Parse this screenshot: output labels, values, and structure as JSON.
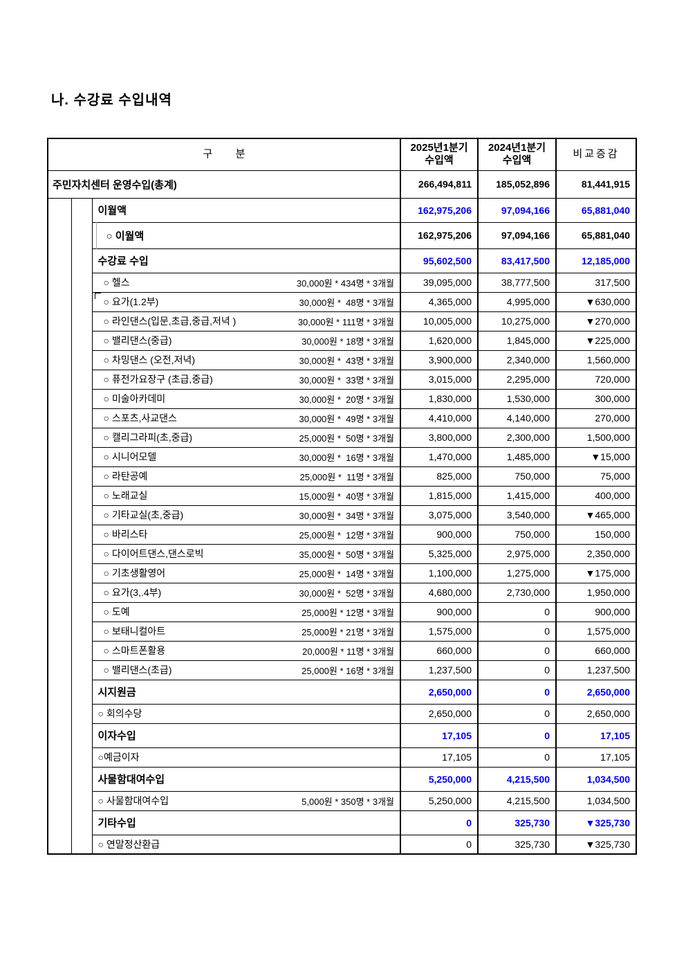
{
  "page": {
    "title": "나. 수강료 수입내역"
  },
  "table": {
    "header": {
      "col_label": "구        분",
      "col_2025_line1": "2025년1분기",
      "col_2025_line2": "수입액",
      "col_2024_line1": "2024년1분기",
      "col_2024_line2": "수입액",
      "col_diff": "비교증감"
    },
    "rows": [
      {
        "kind": "total",
        "label": "주민자치센터 운영수입(총계)",
        "calc": "",
        "v2025": "266,494,811",
        "v2024": "185,052,896",
        "diff": "81,441,915"
      },
      {
        "kind": "section",
        "label": "이월액",
        "calc": "",
        "v2025": "162,975,206",
        "v2024": "97,094,166",
        "diff": "65,881,040"
      },
      {
        "kind": "carry",
        "label": "○ 이월액",
        "calc": "",
        "v2025": "162,975,206",
        "v2024": "97,094,166",
        "diff": "65,881,040"
      },
      {
        "kind": "section",
        "label": "수강료 수입",
        "calc": "",
        "v2025": "95,602,500",
        "v2024": "83,417,500",
        "diff": "12,185,000"
      },
      {
        "kind": "course",
        "label": "○ 헬스",
        "calc": "30,000원 * 434명 * 3개월",
        "v2025": "39,095,000",
        "v2024": "38,777,500",
        "diff": "317,500"
      },
      {
        "kind": "course",
        "label": "○ 요가(1.2부)",
        "calc": "30,000원 *  48명 * 3개월",
        "v2025": "4,365,000",
        "v2024": "4,995,000",
        "diff": "▼630,000"
      },
      {
        "kind": "course",
        "label": "○ 라인댄스(입문,초급,중급,저녁 )",
        "calc": "30,000원 * 111명 * 3개월",
        "v2025": "10,005,000",
        "v2024": "10,275,000",
        "diff": "▼270,000"
      },
      {
        "kind": "course",
        "label": "○ 밸리댄스(중급)",
        "calc": "30,000원 * 18명 * 3개월",
        "v2025": "1,620,000",
        "v2024": "1,845,000",
        "diff": "▼225,000"
      },
      {
        "kind": "course",
        "label": "○ 차밍댄스 (오전,저녁)",
        "calc": "30,000원 *  43명 * 3개월",
        "v2025": "3,900,000",
        "v2024": "2,340,000",
        "diff": "1,560,000"
      },
      {
        "kind": "course",
        "label": "○ 퓨전가요장구 (초급,중급)",
        "calc": "30,000원 *  33명 * 3개월",
        "v2025": "3,015,000",
        "v2024": "2,295,000",
        "diff": "720,000"
      },
      {
        "kind": "course",
        "label": "○ 미술아카데미",
        "calc": "30,000원 *  20명 * 3개월",
        "v2025": "1,830,000",
        "v2024": "1,530,000",
        "diff": "300,000"
      },
      {
        "kind": "course",
        "label": "○ 스포츠,사교댄스",
        "calc": "30,000원 *  49명 * 3개월",
        "v2025": "4,410,000",
        "v2024": "4,140,000",
        "diff": "270,000"
      },
      {
        "kind": "course",
        "label": "○ 캘리그라피(초,중급)",
        "calc": "25,000원 *  50명 * 3개월",
        "v2025": "3,800,000",
        "v2024": "2,300,000",
        "diff": "1,500,000"
      },
      {
        "kind": "course",
        "label": "○ 시니어모델",
        "calc": "30,000원 *  16명 * 3개월",
        "v2025": "1,470,000",
        "v2024": "1,485,000",
        "diff": "▼15,000"
      },
      {
        "kind": "course",
        "label": "○ 라탄공예",
        "calc": "25,000원 *  11명 * 3개월",
        "v2025": "825,000",
        "v2024": "750,000",
        "diff": "75,000"
      },
      {
        "kind": "course",
        "label": "○ 노래교실",
        "calc": "15,000원 *  40명 * 3개월",
        "v2025": "1,815,000",
        "v2024": "1,415,000",
        "diff": "400,000"
      },
      {
        "kind": "course",
        "label": "○ 기타교실(초,중급)",
        "calc": "30,000원 *  34명 * 3개월",
        "v2025": "3,075,000",
        "v2024": "3,540,000",
        "diff": "▼465,000"
      },
      {
        "kind": "course",
        "label": "○ 바리스타",
        "calc": "25,000원 *  12명 * 3개월",
        "v2025": "900,000",
        "v2024": "750,000",
        "diff": "150,000"
      },
      {
        "kind": "course",
        "label": "○ 다이어트댄스,댄스로빅",
        "calc": "35,000원 *  50명 * 3개월",
        "v2025": "5,325,000",
        "v2024": "2,975,000",
        "diff": "2,350,000"
      },
      {
        "kind": "course",
        "label": "○ 기초생활영어",
        "calc": "25,000원 *  14명 * 3개월",
        "v2025": "1,100,000",
        "v2024": "1,275,000",
        "diff": "▼175,000"
      },
      {
        "kind": "course",
        "label": "○ 요가(3,.4부)",
        "calc": "30,000원 *  52명 * 3개월",
        "v2025": "4,680,000",
        "v2024": "2,730,000",
        "diff": "1,950,000"
      },
      {
        "kind": "course",
        "label": "○ 도예",
        "calc": "25,000원 * 12명 * 3개월",
        "v2025": "900,000",
        "v2024": "0",
        "diff": "900,000"
      },
      {
        "kind": "course",
        "label": "○ 보태니컬아트",
        "calc": "25,000원 * 21명 * 3개월",
        "v2025": "1,575,000",
        "v2024": "0",
        "diff": "1,575,000"
      },
      {
        "kind": "course",
        "label": "○ 스마트폰활용",
        "calc": "20,000원 * 11명 * 3개월",
        "v2025": "660,000",
        "v2024": "0",
        "diff": "660,000"
      },
      {
        "kind": "course",
        "label": "○ 밸리댄스(초급)",
        "calc": "25,000원 * 16명 * 3개월",
        "v2025": "1,237,500",
        "v2024": "0",
        "diff": "1,237,500"
      },
      {
        "kind": "section",
        "label": "시지원금",
        "calc": "",
        "v2025": "2,650,000",
        "v2024": "0",
        "diff": "2,650,000"
      },
      {
        "kind": "detail",
        "label": "○ 회의수당",
        "calc": "",
        "v2025": "2,650,000",
        "v2024": "0",
        "diff": "2,650,000"
      },
      {
        "kind": "section",
        "label": "이자수입",
        "calc": "",
        "v2025": "17,105",
        "v2024": "0",
        "diff": "17,105"
      },
      {
        "kind": "detail",
        "label": "○예금이자",
        "calc": "",
        "v2025": "17,105",
        "v2024": "0",
        "diff": "17,105"
      },
      {
        "kind": "section",
        "label": "사물함대여수입",
        "calc": "",
        "v2025": "5,250,000",
        "v2024": "4,215,500",
        "diff": "1,034,500"
      },
      {
        "kind": "detail",
        "label": "○ 사물함대여수입",
        "calc": "5,000원 * 350명 * 3개월",
        "v2025": "5,250,000",
        "v2024": "4,215,500",
        "diff": "1,034,500"
      },
      {
        "kind": "section",
        "label": "기타수입",
        "calc": "",
        "v2025": "0",
        "v2024": "325,730",
        "diff": "▼325,730"
      },
      {
        "kind": "detail",
        "label": "○ 연말정산환급",
        "calc": "",
        "v2025": "0",
        "v2024": "325,730",
        "diff": "▼325,730"
      }
    ]
  }
}
